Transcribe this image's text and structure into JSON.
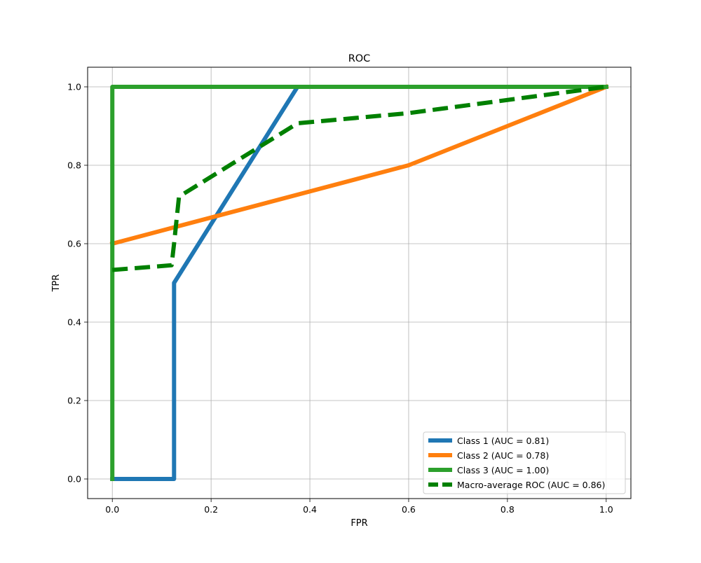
{
  "chart_data": {
    "type": "line",
    "title": "ROC",
    "xlabel": "FPR",
    "ylabel": "TPR",
    "xlim": [
      -0.05,
      1.05
    ],
    "ylim": [
      -0.05,
      1.05
    ],
    "xticks": [
      0.0,
      0.2,
      0.4,
      0.6,
      0.8,
      1.0
    ],
    "yticks": [
      0.0,
      0.2,
      0.4,
      0.6,
      0.8,
      1.0
    ],
    "xtick_labels": [
      "0.0",
      "0.2",
      "0.4",
      "0.6",
      "0.8",
      "1.0"
    ],
    "ytick_labels": [
      "0.0",
      "0.2",
      "0.4",
      "0.6",
      "0.8",
      "1.0"
    ],
    "grid": true,
    "legend_position": "bottom-right",
    "series": [
      {
        "name": "Class 1 (AUC = 0.81)",
        "color": "#1f77b4",
        "dash": "solid",
        "x": [
          0.0,
          0.125,
          0.125,
          0.375,
          1.0
        ],
        "y": [
          0.0,
          0.0,
          0.5,
          1.0,
          1.0
        ]
      },
      {
        "name": "Class 2 (AUC = 0.78)",
        "color": "#ff7f0e",
        "dash": "solid",
        "x": [
          0.0,
          0.6,
          1.0
        ],
        "y": [
          0.6,
          0.8,
          1.0
        ]
      },
      {
        "name": "Class 3 (AUC = 1.00)",
        "color": "#2ca02c",
        "dash": "solid",
        "x": [
          0.0,
          0.0,
          1.0
        ],
        "y": [
          0.0,
          1.0,
          1.0
        ]
      },
      {
        "name": "Macro-average ROC (AUC = 0.86)",
        "color": "#008000",
        "dash": "dashed",
        "x": [
          0.0,
          0.12,
          0.125,
          0.135,
          0.375,
          0.6,
          1.0
        ],
        "y": [
          0.533,
          0.545,
          0.6,
          0.72,
          0.907,
          0.933,
          1.0
        ]
      }
    ]
  }
}
